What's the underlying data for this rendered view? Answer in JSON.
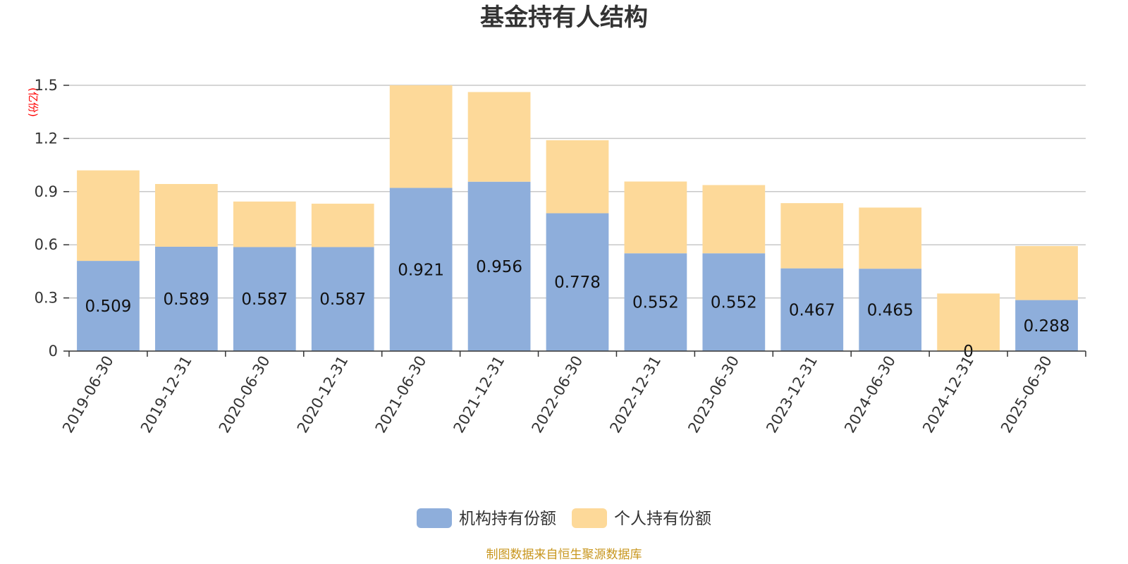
{
  "chart_data": {
    "type": "bar",
    "stacked": true,
    "title": "基金持有人结构",
    "unit_label": "(亿份)",
    "categories": [
      "2019-06-30",
      "2019-12-31",
      "2020-06-30",
      "2020-12-31",
      "2021-06-30",
      "2021-12-31",
      "2022-06-30",
      "2022-12-31",
      "2023-06-30",
      "2023-12-31",
      "2024-06-30",
      "2024-12-31",
      "2025-06-30"
    ],
    "series": [
      {
        "name": "机构持有份额",
        "color": "#8eaedb",
        "values": [
          0.509,
          0.589,
          0.587,
          0.587,
          0.921,
          0.956,
          0.778,
          0.552,
          0.552,
          0.467,
          0.465,
          0,
          0.288
        ],
        "labels": [
          "0.509",
          "0.589",
          "0.587",
          "0.587",
          "0.921",
          "0.956",
          "0.778",
          "0.552",
          "0.552",
          "0.467",
          "0.465",
          "0",
          "0.288"
        ]
      },
      {
        "name": "个人持有份额",
        "color": "#fdd999",
        "values": [
          0.511,
          0.354,
          0.257,
          0.245,
          0.579,
          0.506,
          0.412,
          0.405,
          0.385,
          0.368,
          0.345,
          0.325,
          0.305
        ]
      }
    ],
    "yticks": [
      "0",
      "0.3",
      "0.6",
      "0.9",
      "1.2",
      "1.5"
    ],
    "ylim": [
      0,
      1.5
    ],
    "grid": true,
    "legend_position": "bottom",
    "source_note": "制图数据来自恒生聚源数据库"
  }
}
